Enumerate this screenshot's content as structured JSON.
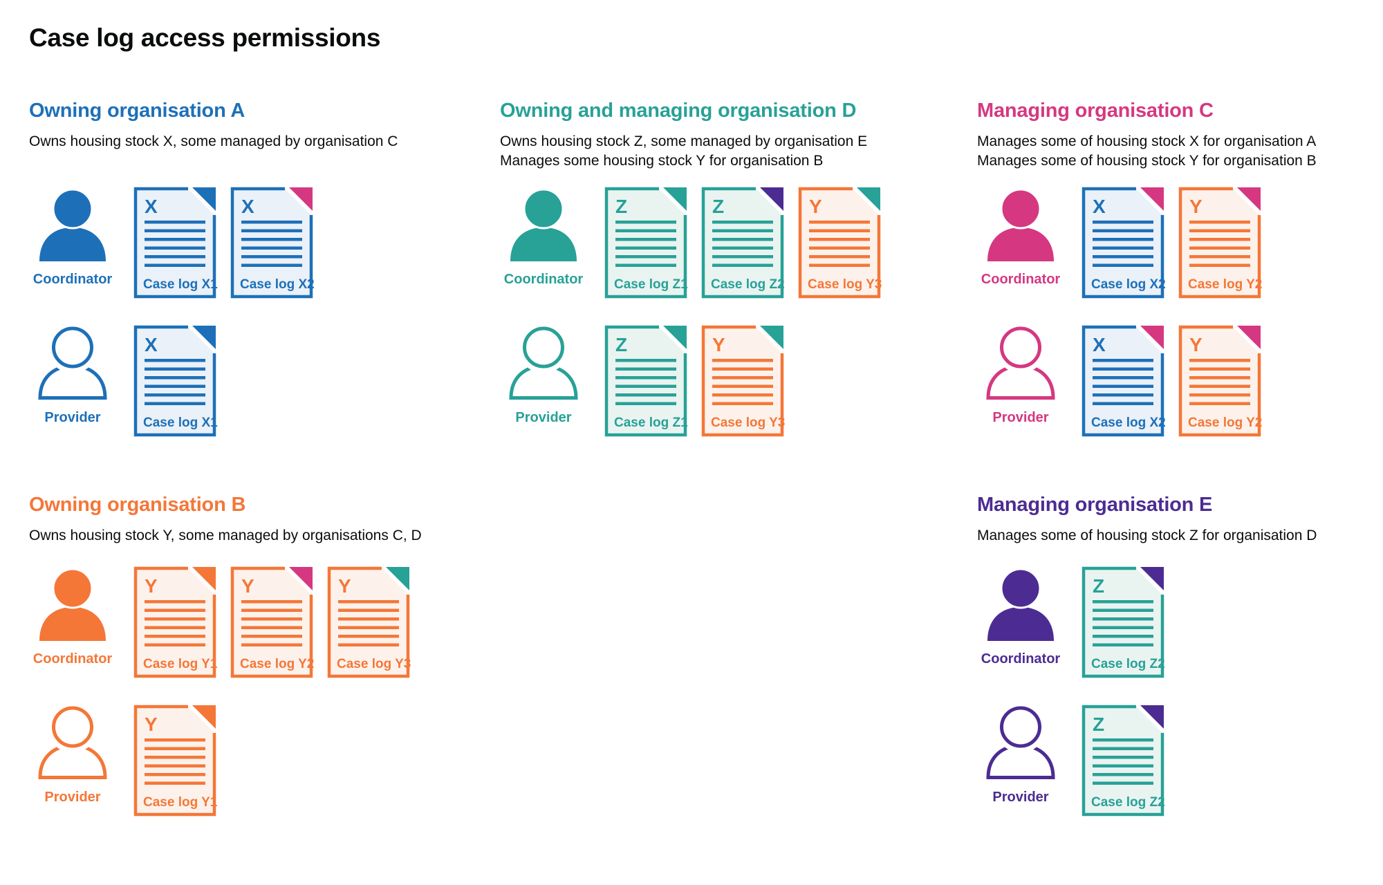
{
  "title": "Case log access permissions",
  "palette": {
    "blue": {
      "main": "#1d70b8",
      "tint": "#eaf1f8"
    },
    "teal": {
      "main": "#28a197",
      "tint": "#e9f4f1"
    },
    "orange": {
      "main": "#f47738",
      "tint": "#fdf2eb"
    },
    "pink": {
      "main": "#d53880",
      "tint": "#fbeaf2"
    },
    "purple": {
      "main": "#4c2c92",
      "tint": "#ece9f4"
    },
    "text": "#0b0c0c",
    "background": "#ffffff"
  },
  "stock_letter_colors": {
    "X": "blue",
    "Y": "orange",
    "Z": "teal"
  },
  "organisations": [
    {
      "slot": "a",
      "name": "Owning organisation A",
      "color": "blue",
      "description": [
        "Owns housing stock X, some managed by organisation C"
      ],
      "rows": [
        {
          "role": "Coordinator",
          "person": "filled",
          "docs": [
            {
              "letter": "X",
              "label": "Case log X1",
              "color": "blue",
              "fold": "blue"
            },
            {
              "letter": "X",
              "label": "Case log X2",
              "color": "blue",
              "fold": "pink"
            }
          ]
        },
        {
          "role": "Provider",
          "person": "outline",
          "docs": [
            {
              "letter": "X",
              "label": "Case log X1",
              "color": "blue",
              "fold": "blue"
            }
          ]
        }
      ]
    },
    {
      "slot": "d",
      "name": "Owning and managing organisation D",
      "color": "teal",
      "description": [
        "Owns housing stock Z, some managed by organisation E",
        "Manages some housing stock Y for organisation B"
      ],
      "rows": [
        {
          "role": "Coordinator",
          "person": "filled",
          "docs": [
            {
              "letter": "Z",
              "label": "Case log Z1",
              "color": "teal",
              "fold": "teal"
            },
            {
              "letter": "Z",
              "label": "Case log Z2",
              "color": "teal",
              "fold": "purple"
            },
            {
              "letter": "Y",
              "label": "Case log Y3",
              "color": "orange",
              "fold": "teal"
            }
          ]
        },
        {
          "role": "Provider",
          "person": "outline",
          "docs": [
            {
              "letter": "Z",
              "label": "Case log Z1",
              "color": "teal",
              "fold": "teal"
            },
            {
              "letter": "Y",
              "label": "Case log Y3",
              "color": "orange",
              "fold": "teal"
            }
          ]
        }
      ]
    },
    {
      "slot": "c",
      "name": "Managing organisation C",
      "color": "pink",
      "description": [
        "Manages some of housing stock X for organisation A",
        "Manages some of housing stock Y for organisation B"
      ],
      "rows": [
        {
          "role": "Coordinator",
          "person": "filled",
          "docs": [
            {
              "letter": "X",
              "label": "Case log X2",
              "color": "blue",
              "fold": "pink"
            },
            {
              "letter": "Y",
              "label": "Case log Y2",
              "color": "orange",
              "fold": "pink"
            }
          ]
        },
        {
          "role": "Provider",
          "person": "outline",
          "docs": [
            {
              "letter": "X",
              "label": "Case log X2",
              "color": "blue",
              "fold": "pink"
            },
            {
              "letter": "Y",
              "label": "Case log Y2",
              "color": "orange",
              "fold": "pink"
            }
          ]
        }
      ]
    },
    {
      "slot": "b",
      "name": "Owning organisation B",
      "color": "orange",
      "description": [
        "Owns housing stock Y, some managed by organisations C, D"
      ],
      "rows": [
        {
          "role": "Coordinator",
          "person": "filled",
          "docs": [
            {
              "letter": "Y",
              "label": "Case log Y1",
              "color": "orange",
              "fold": "orange"
            },
            {
              "letter": "Y",
              "label": "Case log Y2",
              "color": "orange",
              "fold": "pink"
            },
            {
              "letter": "Y",
              "label": "Case log Y3",
              "color": "orange",
              "fold": "teal"
            }
          ]
        },
        {
          "role": "Provider",
          "person": "outline",
          "docs": [
            {
              "letter": "Y",
              "label": "Case log Y1",
              "color": "orange",
              "fold": "orange"
            }
          ]
        }
      ]
    },
    {
      "slot": "e",
      "name": "Managing organisation E",
      "color": "purple",
      "description": [
        "Manages some of housing stock Z for organisation D"
      ],
      "rows": [
        {
          "role": "Coordinator",
          "person": "filled",
          "docs": [
            {
              "letter": "Z",
              "label": "Case log Z2",
              "color": "teal",
              "fold": "purple"
            }
          ]
        },
        {
          "role": "Provider",
          "person": "outline",
          "docs": [
            {
              "letter": "Z",
              "label": "Case log Z2",
              "color": "teal",
              "fold": "purple"
            }
          ]
        }
      ]
    }
  ]
}
